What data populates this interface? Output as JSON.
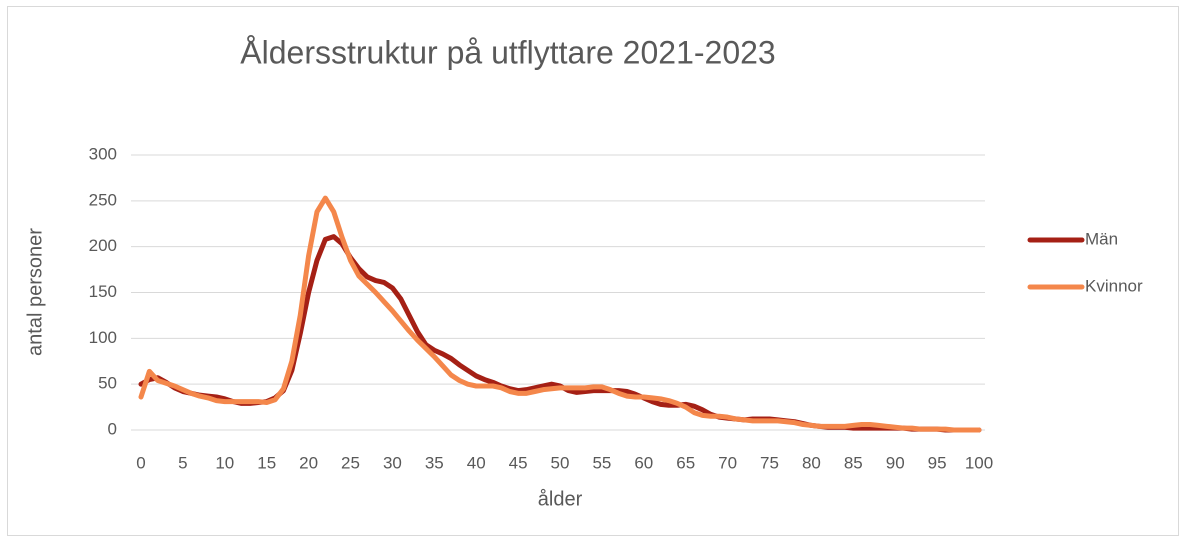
{
  "chart_data": {
    "type": "line",
    "title": "Åldersstruktur på utflyttare 2021-2023",
    "x_label": "ålder",
    "y_label": "antal personer",
    "x": [
      0,
      1,
      2,
      3,
      4,
      5,
      6,
      7,
      8,
      9,
      10,
      11,
      12,
      13,
      14,
      15,
      16,
      17,
      18,
      19,
      20,
      21,
      22,
      23,
      24,
      25,
      26,
      27,
      28,
      29,
      30,
      31,
      32,
      33,
      34,
      35,
      36,
      37,
      38,
      39,
      40,
      41,
      42,
      43,
      44,
      45,
      46,
      47,
      48,
      49,
      50,
      51,
      52,
      53,
      54,
      55,
      56,
      57,
      58,
      59,
      60,
      61,
      62,
      63,
      64,
      65,
      66,
      67,
      68,
      69,
      70,
      71,
      72,
      73,
      74,
      75,
      76,
      77,
      78,
      79,
      80,
      81,
      82,
      83,
      84,
      85,
      86,
      87,
      88,
      89,
      90,
      91,
      92,
      93,
      94,
      95,
      96,
      97,
      98,
      99,
      100
    ],
    "series": [
      {
        "name": "Män",
        "color": "#a52015",
        "values": [
          50,
          55,
          57,
          52,
          46,
          42,
          40,
          38,
          37,
          36,
          34,
          31,
          29,
          29,
          30,
          31,
          35,
          43,
          65,
          105,
          150,
          185,
          208,
          211,
          203,
          188,
          176,
          167,
          163,
          161,
          155,
          143,
          125,
          107,
          93,
          87,
          83,
          78,
          71,
          65,
          59,
          55,
          52,
          48,
          45,
          43,
          44,
          46,
          48,
          50,
          48,
          43,
          41,
          42,
          43,
          43,
          43,
          43,
          42,
          39,
          35,
          31,
          28,
          27,
          27,
          28,
          26,
          22,
          17,
          14,
          13,
          12,
          11,
          12,
          12,
          12,
          11,
          10,
          9,
          7,
          5,
          4,
          3,
          3,
          3,
          2,
          2,
          2,
          2,
          2,
          2,
          2,
          1,
          1,
          1,
          1,
          0,
          0,
          0,
          0,
          0
        ]
      },
      {
        "name": "Kvinnor",
        "color": "#f4874b",
        "values": [
          36,
          64,
          54,
          51,
          48,
          44,
          40,
          37,
          35,
          32,
          31,
          31,
          31,
          31,
          31,
          30,
          33,
          45,
          75,
          125,
          190,
          238,
          253,
          238,
          210,
          185,
          168,
          159,
          150,
          140,
          130,
          119,
          108,
          98,
          89,
          80,
          70,
          60,
          54,
          50,
          48,
          48,
          48,
          46,
          42,
          40,
          40,
          42,
          44,
          45,
          46,
          46,
          46,
          46,
          47,
          47,
          44,
          40,
          37,
          36,
          36,
          35,
          34,
          32,
          29,
          25,
          19,
          16,
          15,
          15,
          14,
          12,
          11,
          10,
          10,
          10,
          10,
          9,
          8,
          6,
          5,
          4,
          4,
          4,
          4,
          5,
          6,
          6,
          5,
          4,
          3,
          2,
          2,
          1,
          1,
          1,
          1,
          0,
          0,
          0,
          0
        ]
      }
    ],
    "xlim": [
      0,
      100
    ],
    "xticks": [
      0,
      5,
      10,
      15,
      20,
      25,
      30,
      35,
      40,
      45,
      50,
      55,
      60,
      65,
      70,
      75,
      80,
      85,
      90,
      95,
      100
    ],
    "ylim": [
      0,
      300
    ],
    "yticks": [
      0,
      50,
      100,
      150,
      200,
      250,
      300
    ],
    "grid": true,
    "legend": "right"
  }
}
